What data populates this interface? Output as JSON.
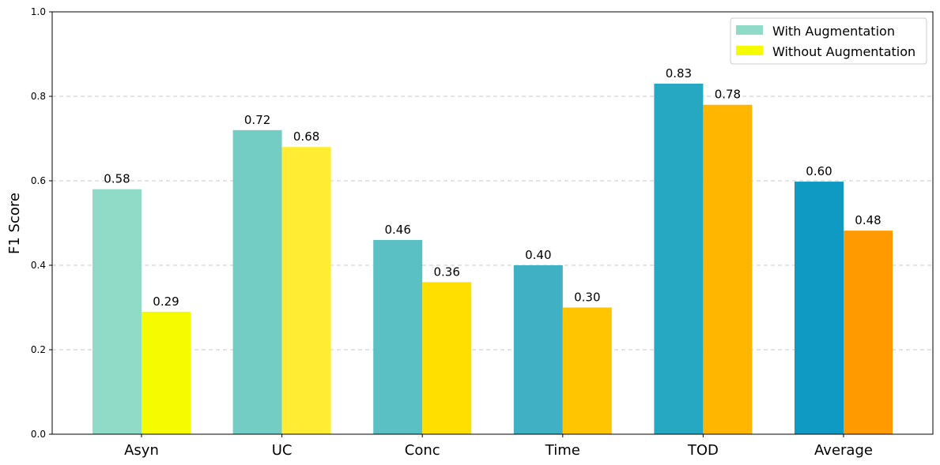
{
  "chart_data": {
    "type": "bar",
    "categories": [
      "Asyn",
      "UC",
      "Conc",
      "Time",
      "TOD",
      "Average"
    ],
    "series": [
      {
        "name": "With Augmentation",
        "values": [
          0.58,
          0.72,
          0.46,
          0.4,
          0.83,
          0.598
        ],
        "value_labels": [
          "0.58",
          "0.72",
          "0.46",
          "0.40",
          "0.83",
          "0.60"
        ],
        "colors": [
          "#8fdbc8",
          "#74cdc4",
          "#5bc0c4",
          "#40b0c4",
          "#27a8c2",
          "#0e9ac2"
        ],
        "legend_color": "#8fdbc8"
      },
      {
        "name": "Without Augmentation",
        "values": [
          0.29,
          0.68,
          0.36,
          0.3,
          0.78,
          0.482
        ],
        "value_labels": [
          "0.29",
          "0.68",
          "0.36",
          "0.30",
          "0.78",
          "0.48"
        ],
        "colors": [
          "#f7fb00",
          "#ffec33",
          "#ffdf00",
          "#ffc600",
          "#ffb600",
          "#ff9a00"
        ],
        "legend_color": "#f7fb00"
      }
    ],
    "xlabel": "",
    "ylabel": "F1 Score",
    "ylim": [
      0,
      1.0
    ],
    "yticks": [
      "0.0",
      "0.2",
      "0.4",
      "0.6",
      "0.8",
      "1.0"
    ],
    "grid": "y-dashed",
    "legend_position": "top-right"
  }
}
